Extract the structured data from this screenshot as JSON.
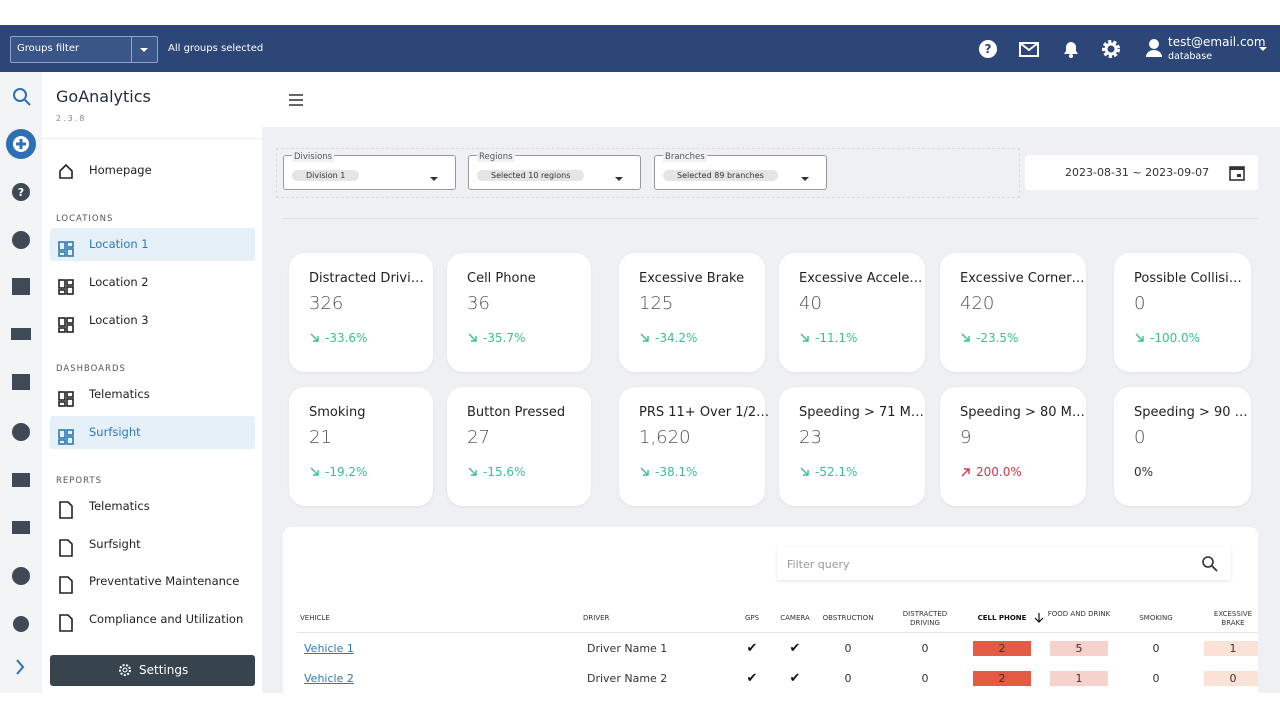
{
  "header": {
    "groups_filter": "Groups filter",
    "groups_selected": "All groups selected",
    "user_email": "test@email.com",
    "user_db": "database"
  },
  "sidebar": {
    "brand": "GoAnalytics",
    "version": "2.3.8",
    "homepage": "Homepage",
    "sections": [
      {
        "title": "LOCATIONS",
        "items": [
          "Location 1",
          "Location 2",
          "Location 3"
        ]
      },
      {
        "title": "DASHBOARDS",
        "items": [
          "Telematics",
          "Surfsight"
        ]
      },
      {
        "title": "REPORTS",
        "items": [
          "Telematics",
          "Surfsight",
          "Preventative Maintenance",
          "Compliance and Utilization"
        ]
      }
    ],
    "settings": "Settings"
  },
  "filters": [
    {
      "label": "Divisions",
      "value": "Division 1"
    },
    {
      "label": "Regions",
      "value": "Selected 10 regions"
    },
    {
      "label": "Branches",
      "value": "Selected 89 branches"
    }
  ],
  "date_range": "2023-08-31 ~ 2023-09-07",
  "cards": [
    {
      "title": "Distracted Drivi…",
      "value": 326,
      "change": "-33.6%"
    },
    {
      "title": "Cell Phone",
      "value": 36,
      "change": "-35.7%"
    },
    {
      "title": "Excessive Brake",
      "value": 125,
      "change": "-34.2%"
    },
    {
      "title": "Excessive Accele…",
      "value": 40,
      "change": "-11.1%"
    },
    {
      "title": "Excessive Corner…",
      "value": 420,
      "change": "-23.5%"
    },
    {
      "title": "Possible Collisi…",
      "value": 0,
      "change": "-100.0%"
    },
    {
      "title": "Smoking",
      "value": 21,
      "change": "-19.2%"
    },
    {
      "title": "Button Pressed",
      "value": 27,
      "change": "-15.6%"
    },
    {
      "title": "PRS 11+ Over 1/2…",
      "value": "1,620",
      "change": "-38.1%"
    },
    {
      "title": "Speeding > 71 M…",
      "value": 23,
      "change": "-52.1%"
    },
    {
      "title": "Speeding > 80 M…",
      "value": 9,
      "change": "200.0%"
    },
    {
      "title": "Speeding > 90 …",
      "value": 0,
      "change": "0%"
    }
  ],
  "table": {
    "filter_placeholder": "Filter query",
    "columns": [
      "VEHICLE",
      "DRIVER",
      "GPS",
      "CAMERA",
      "OBSTRUCTION",
      "DISTRACTED DRIVING",
      "CELL PHONE",
      "FOOD AND DRINK",
      "SMOKING",
      "EXCESSIVE BRAKE"
    ],
    "rows": [
      [
        "Vehicle 1",
        "Driver Name 1",
        "✔",
        "✔",
        0,
        0,
        2,
        5,
        0,
        1
      ],
      [
        "Vehicle 2",
        "Driver Name 2",
        "✔",
        "✔",
        0,
        0,
        2,
        1,
        0,
        0
      ]
    ]
  }
}
